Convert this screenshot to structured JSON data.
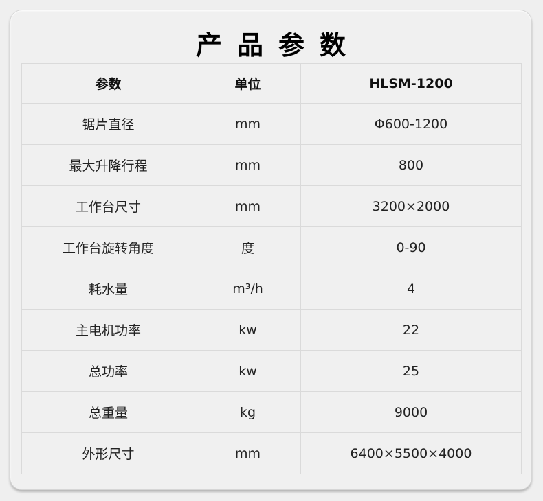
{
  "title": "产品参数",
  "table": {
    "headers": [
      "参数",
      "单位",
      "HLSM-1200"
    ],
    "rows": [
      [
        "锯片直径",
        "mm",
        "Φ600-1200"
      ],
      [
        "最大升降行程",
        "mm",
        "800"
      ],
      [
        "工作台尺寸",
        "mm",
        "3200×2000"
      ],
      [
        "工作台旋转角度",
        "度",
        "0-90"
      ],
      [
        "耗水量",
        "m³/h",
        "4"
      ],
      [
        "主电机功率",
        "kw",
        "22"
      ],
      [
        "总功率",
        "kw",
        "25"
      ],
      [
        "总重量",
        "kg",
        "9000"
      ],
      [
        "外形尺寸",
        "mm",
        "6400×5500×4000"
      ]
    ]
  }
}
